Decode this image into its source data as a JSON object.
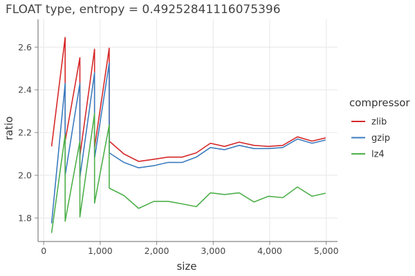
{
  "chart_data": {
    "type": "line",
    "title": "FLOAT type, entropy = 0.49252841116075396",
    "xlabel": "size",
    "ylabel": "ratio",
    "xlim": [
      -100,
      5200
    ],
    "ylim": [
      1.69,
      2.73
    ],
    "x_ticks": [
      0,
      1000,
      2000,
      3000,
      4000,
      5000
    ],
    "x_tick_labels": [
      "0",
      "1,000",
      "2,000",
      "3,000",
      "4,000",
      "5,000"
    ],
    "y_ticks": [
      1.8,
      2.0,
      2.2,
      2.4,
      2.6
    ],
    "y_tick_labels": [
      "1.8",
      "2.0",
      "2.2",
      "2.4",
      "2.6"
    ],
    "grid": true,
    "legend": {
      "title": "compressor",
      "position": "right"
    },
    "series": [
      {
        "name": "zlib",
        "color": "#d62728",
        "points": [
          [
            140,
            2.135
          ],
          [
            380,
            2.645
          ],
          [
            380,
            2.16
          ],
          [
            640,
            2.55
          ],
          [
            640,
            2.09
          ],
          [
            900,
            2.59
          ],
          [
            900,
            2.13
          ],
          [
            1160,
            2.595
          ],
          [
            1160,
            2.16
          ],
          [
            1420,
            2.1
          ],
          [
            1680,
            2.065
          ],
          [
            1950,
            2.075
          ],
          [
            2200,
            2.085
          ],
          [
            2450,
            2.085
          ],
          [
            2700,
            2.105
          ],
          [
            2950,
            2.15
          ],
          [
            3200,
            2.135
          ],
          [
            3460,
            2.155
          ],
          [
            3720,
            2.14
          ],
          [
            3980,
            2.135
          ],
          [
            4230,
            2.14
          ],
          [
            4490,
            2.18
          ],
          [
            4750,
            2.16
          ],
          [
            4990,
            2.175
          ]
        ]
      },
      {
        "name": "gzip",
        "color": "#3a7bbf",
        "points": [
          [
            140,
            1.775
          ],
          [
            380,
            2.43
          ],
          [
            380,
            2.0
          ],
          [
            640,
            2.43
          ],
          [
            640,
            1.99
          ],
          [
            900,
            2.48
          ],
          [
            900,
            2.08
          ],
          [
            1160,
            2.525
          ],
          [
            1160,
            2.105
          ],
          [
            1420,
            2.06
          ],
          [
            1680,
            2.035
          ],
          [
            1950,
            2.045
          ],
          [
            2200,
            2.06
          ],
          [
            2450,
            2.06
          ],
          [
            2700,
            2.085
          ],
          [
            2950,
            2.13
          ],
          [
            3200,
            2.12
          ],
          [
            3460,
            2.14
          ],
          [
            3720,
            2.125
          ],
          [
            3980,
            2.125
          ],
          [
            4230,
            2.13
          ],
          [
            4490,
            2.17
          ],
          [
            4750,
            2.15
          ],
          [
            4990,
            2.165
          ]
        ]
      },
      {
        "name": "lz4",
        "color": "#4daf4a",
        "points": [
          [
            140,
            1.73
          ],
          [
            380,
            2.19
          ],
          [
            380,
            1.785
          ],
          [
            640,
            2.16
          ],
          [
            640,
            1.805
          ],
          [
            900,
            2.29
          ],
          [
            900,
            1.87
          ],
          [
            1160,
            2.235
          ],
          [
            1160,
            1.94
          ],
          [
            1420,
            1.905
          ],
          [
            1680,
            1.845
          ],
          [
            1950,
            1.878
          ],
          [
            2200,
            1.878
          ],
          [
            2450,
            1.866
          ],
          [
            2700,
            1.853
          ],
          [
            2950,
            1.918
          ],
          [
            3200,
            1.91
          ],
          [
            3460,
            1.918
          ],
          [
            3720,
            1.875
          ],
          [
            3980,
            1.902
          ],
          [
            4230,
            1.895
          ],
          [
            4490,
            1.945
          ],
          [
            4750,
            1.902
          ],
          [
            4990,
            1.916
          ]
        ]
      }
    ]
  }
}
